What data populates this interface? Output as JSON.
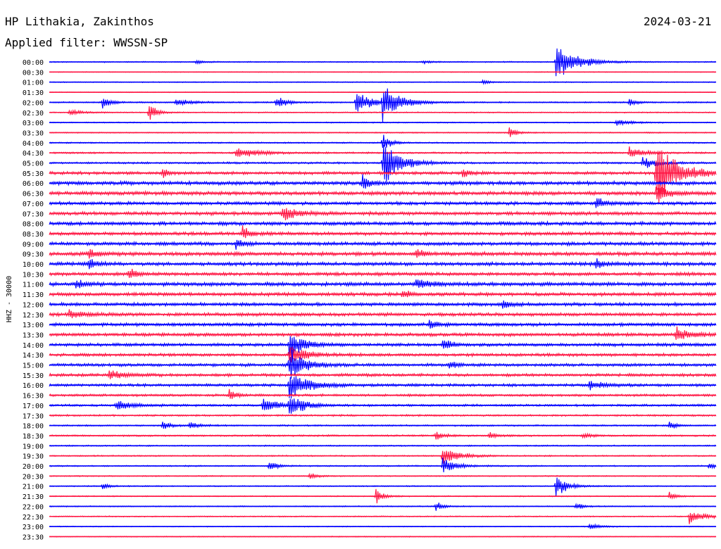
{
  "header": {
    "station": "HP Lithakia, Zakinthos",
    "date": "2024-03-21",
    "filter": "Applied filter: WWSSN-SP"
  },
  "chart_data": {
    "type": "line",
    "title": "HP Lithakia, Zakinthos",
    "ylabel": "HHZ - 30000",
    "trace_colors": [
      "#0000ff",
      "#ff1744"
    ],
    "rows": [
      "00:00",
      "00:30",
      "01:00",
      "01:30",
      "02:00",
      "02:30",
      "03:00",
      "03:30",
      "04:00",
      "04:30",
      "05:00",
      "05:30",
      "06:00",
      "06:30",
      "07:00",
      "07:30",
      "08:00",
      "08:30",
      "09:00",
      "09:30",
      "10:00",
      "10:30",
      "11:00",
      "11:30",
      "12:00",
      "12:30",
      "13:00",
      "13:30",
      "14:00",
      "14:30",
      "15:00",
      "15:30",
      "16:00",
      "16:30",
      "17:00",
      "17:30",
      "18:00",
      "18:30",
      "19:00",
      "19:30",
      "20:00",
      "20:30",
      "21:00",
      "21:30",
      "22:00",
      "22:30",
      "23:00",
      "23:30"
    ],
    "noise_level": [
      0.3,
      0.2,
      0.25,
      0.2,
      0.35,
      0.3,
      0.3,
      0.3,
      0.35,
      0.45,
      0.5,
      0.8,
      1.0,
      1.0,
      0.9,
      0.95,
      0.95,
      0.9,
      0.95,
      1.0,
      0.95,
      0.9,
      1.0,
      0.95,
      0.9,
      0.9,
      0.9,
      0.9,
      0.85,
      0.8,
      0.8,
      0.8,
      0.75,
      0.65,
      0.6,
      0.5,
      0.4,
      0.45,
      0.35,
      0.35,
      0.35,
      0.3,
      0.3,
      0.3,
      0.3,
      0.3,
      0.25,
      0.25
    ],
    "events": [
      {
        "row": 0,
        "x": 0.22,
        "amp": 0.6,
        "dur": 0.01
      },
      {
        "row": 0,
        "x": 0.56,
        "amp": 0.5,
        "dur": 0.01
      },
      {
        "row": 0,
        "x": 0.76,
        "amp": 4.5,
        "dur": 0.03
      },
      {
        "row": 2,
        "x": 0.65,
        "amp": 0.7,
        "dur": 0.01
      },
      {
        "row": 4,
        "x": 0.08,
        "amp": 2.0,
        "dur": 0.01
      },
      {
        "row": 4,
        "x": 0.19,
        "amp": 1.0,
        "dur": 0.02
      },
      {
        "row": 4,
        "x": 0.34,
        "amp": 1.5,
        "dur": 0.015
      },
      {
        "row": 4,
        "x": 0.46,
        "amp": 3.0,
        "dur": 0.02
      },
      {
        "row": 4,
        "x": 0.5,
        "amp": 4.5,
        "dur": 0.025
      },
      {
        "row": 4,
        "x": 0.87,
        "amp": 1.2,
        "dur": 0.01
      },
      {
        "row": 5,
        "x": 0.15,
        "amp": 3.0,
        "dur": 0.01
      },
      {
        "row": 5,
        "x": 0.03,
        "amp": 0.8,
        "dur": 0.02
      },
      {
        "row": 7,
        "x": 0.69,
        "amp": 1.5,
        "dur": 0.01
      },
      {
        "row": 6,
        "x": 0.85,
        "amp": 0.8,
        "dur": 0.02
      },
      {
        "row": 8,
        "x": 0.5,
        "amp": 2.5,
        "dur": 0.01
      },
      {
        "row": 9,
        "x": 0.28,
        "amp": 1.5,
        "dur": 0.03
      },
      {
        "row": 9,
        "x": 0.87,
        "amp": 1.5,
        "dur": 0.02
      },
      {
        "row": 10,
        "x": 0.5,
        "amp": 6.0,
        "dur": 0.025
      },
      {
        "row": 10,
        "x": 0.89,
        "amp": 1.5,
        "dur": 0.02
      },
      {
        "row": 11,
        "x": 0.91,
        "amp": 9.0,
        "dur": 0.03
      },
      {
        "row": 11,
        "x": 0.17,
        "amp": 1.2,
        "dur": 0.01
      },
      {
        "row": 11,
        "x": 0.62,
        "amp": 1.2,
        "dur": 0.01
      },
      {
        "row": 12,
        "x": 0.47,
        "amp": 2.0,
        "dur": 0.01
      },
      {
        "row": 13,
        "x": 0.91,
        "amp": 2.0,
        "dur": 0.02
      },
      {
        "row": 14,
        "x": 0.82,
        "amp": 2.0,
        "dur": 0.01
      },
      {
        "row": 15,
        "x": 0.35,
        "amp": 2.0,
        "dur": 0.02
      },
      {
        "row": 17,
        "x": 0.29,
        "amp": 2.0,
        "dur": 0.01
      },
      {
        "row": 18,
        "x": 0.28,
        "amp": 1.5,
        "dur": 0.01
      },
      {
        "row": 19,
        "x": 0.06,
        "amp": 1.5,
        "dur": 0.01
      },
      {
        "row": 19,
        "x": 0.55,
        "amp": 1.5,
        "dur": 0.01
      },
      {
        "row": 20,
        "x": 0.06,
        "amp": 1.5,
        "dur": 0.01
      },
      {
        "row": 20,
        "x": 0.82,
        "amp": 1.5,
        "dur": 0.01
      },
      {
        "row": 21,
        "x": 0.12,
        "amp": 1.5,
        "dur": 0.01
      },
      {
        "row": 22,
        "x": 0.04,
        "amp": 1.5,
        "dur": 0.01
      },
      {
        "row": 22,
        "x": 0.55,
        "amp": 1.2,
        "dur": 0.02
      },
      {
        "row": 23,
        "x": 0.53,
        "amp": 1.5,
        "dur": 0.01
      },
      {
        "row": 24,
        "x": 0.68,
        "amp": 1.5,
        "dur": 0.01
      },
      {
        "row": 25,
        "x": 0.03,
        "amp": 1.2,
        "dur": 0.02
      },
      {
        "row": 26,
        "x": 0.57,
        "amp": 1.5,
        "dur": 0.01
      },
      {
        "row": 27,
        "x": 0.94,
        "amp": 1.8,
        "dur": 0.02
      },
      {
        "row": 28,
        "x": 0.36,
        "amp": 3.5,
        "dur": 0.02
      },
      {
        "row": 28,
        "x": 0.59,
        "amp": 2.0,
        "dur": 0.01
      },
      {
        "row": 29,
        "x": 0.36,
        "amp": 3.0,
        "dur": 0.02
      },
      {
        "row": 30,
        "x": 0.36,
        "amp": 4.5,
        "dur": 0.02
      },
      {
        "row": 30,
        "x": 0.6,
        "amp": 1.2,
        "dur": 0.01
      },
      {
        "row": 31,
        "x": 0.09,
        "amp": 1.5,
        "dur": 0.02
      },
      {
        "row": 32,
        "x": 0.36,
        "amp": 4.0,
        "dur": 0.025
      },
      {
        "row": 32,
        "x": 0.81,
        "amp": 1.2,
        "dur": 0.02
      },
      {
        "row": 33,
        "x": 0.27,
        "amp": 1.5,
        "dur": 0.01
      },
      {
        "row": 34,
        "x": 0.1,
        "amp": 1.5,
        "dur": 0.02
      },
      {
        "row": 34,
        "x": 0.32,
        "amp": 2.0,
        "dur": 0.02
      },
      {
        "row": 34,
        "x": 0.36,
        "amp": 3.0,
        "dur": 0.02
      },
      {
        "row": 36,
        "x": 0.17,
        "amp": 1.5,
        "dur": 0.01
      },
      {
        "row": 36,
        "x": 0.21,
        "amp": 1.0,
        "dur": 0.015
      },
      {
        "row": 36,
        "x": 0.93,
        "amp": 1.2,
        "dur": 0.01
      },
      {
        "row": 37,
        "x": 0.58,
        "amp": 1.5,
        "dur": 0.01
      },
      {
        "row": 37,
        "x": 0.66,
        "amp": 1.0,
        "dur": 0.01
      },
      {
        "row": 37,
        "x": 0.8,
        "amp": 1.0,
        "dur": 0.01
      },
      {
        "row": 39,
        "x": 0.59,
        "amp": 3.0,
        "dur": 0.02
      },
      {
        "row": 40,
        "x": 0.59,
        "amp": 2.0,
        "dur": 0.02
      },
      {
        "row": 40,
        "x": 0.33,
        "amp": 1.5,
        "dur": 0.01
      },
      {
        "row": 40,
        "x": 0.99,
        "amp": 1.2,
        "dur": 0.01
      },
      {
        "row": 41,
        "x": 0.39,
        "amp": 1.0,
        "dur": 0.01
      },
      {
        "row": 42,
        "x": 0.76,
        "amp": 3.0,
        "dur": 0.015
      },
      {
        "row": 42,
        "x": 0.08,
        "amp": 0.8,
        "dur": 0.01
      },
      {
        "row": 43,
        "x": 0.49,
        "amp": 2.0,
        "dur": 0.01
      },
      {
        "row": 43,
        "x": 0.93,
        "amp": 1.0,
        "dur": 0.01
      },
      {
        "row": 44,
        "x": 0.58,
        "amp": 1.2,
        "dur": 0.01
      },
      {
        "row": 44,
        "x": 0.79,
        "amp": 1.0,
        "dur": 0.01
      },
      {
        "row": 45,
        "x": 0.96,
        "amp": 2.0,
        "dur": 0.02
      },
      {
        "row": 46,
        "x": 0.81,
        "amp": 0.8,
        "dur": 0.015
      }
    ]
  }
}
